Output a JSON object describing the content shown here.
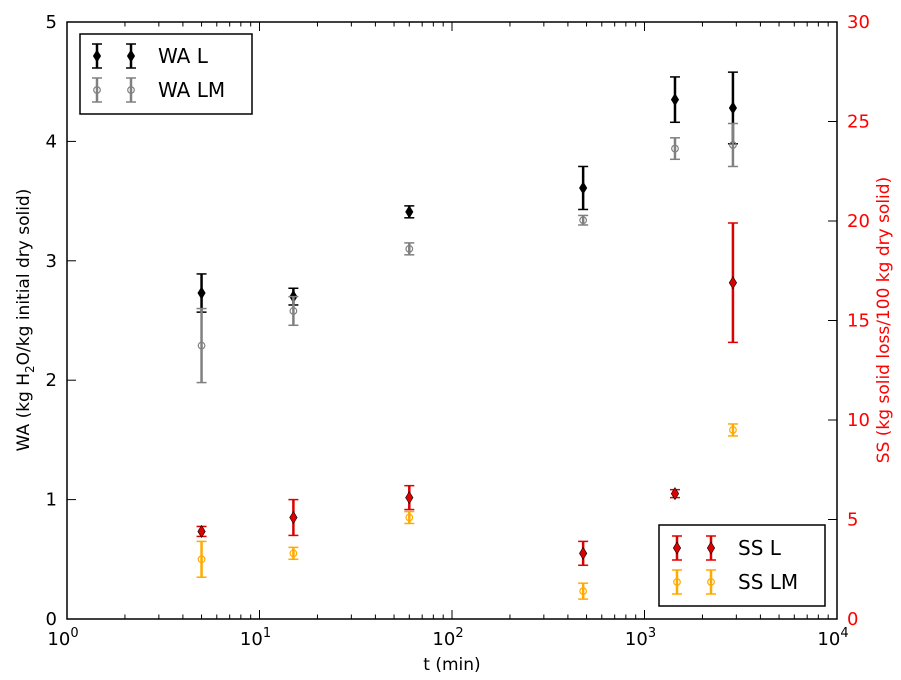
{
  "chart_data": {
    "type": "scatter",
    "x_scale": "log",
    "xlim": [
      1,
      10000
    ],
    "xlabel": "t (min)",
    "x_ticks": [
      {
        "value": 1,
        "base": "10",
        "exp": "0"
      },
      {
        "value": 10,
        "base": "10",
        "exp": "1"
      },
      {
        "value": 100,
        "base": "10",
        "exp": "2"
      },
      {
        "value": 1000,
        "base": "10",
        "exp": "3"
      },
      {
        "value": 10000,
        "base": "10",
        "exp": "4"
      }
    ],
    "left_axis": {
      "label_parts": [
        "WA (kg H",
        "2",
        "O/kg initial dry solid)"
      ],
      "ylim": [
        0,
        5
      ],
      "ticks": [
        "0",
        "1",
        "2",
        "3",
        "4",
        "5"
      ],
      "color": "#000000"
    },
    "right_axis": {
      "label": "SS (kg solid loss/100 kg dry solid)",
      "ylim": [
        0,
        30
      ],
      "ticks": [
        "0",
        "5",
        "10",
        "15",
        "20",
        "25",
        "30"
      ],
      "color": "#ff0000"
    },
    "grid": false,
    "legends": [
      {
        "placement": "top-left",
        "entries": [
          "WA L",
          "WA LM"
        ]
      },
      {
        "placement": "bottom-right",
        "entries": [
          "SS L",
          "SS LM"
        ]
      }
    ],
    "series": [
      {
        "name": "WA L",
        "axis": "left",
        "marker": "diamond-filled",
        "color": "#000000",
        "points": [
          {
            "x": 5,
            "y": 2.73,
            "err": 0.16
          },
          {
            "x": 15,
            "y": 2.7,
            "err": 0.07
          },
          {
            "x": 60,
            "y": 3.41,
            "err": 0.05
          },
          {
            "x": 480,
            "y": 3.61,
            "err": 0.18
          },
          {
            "x": 1440,
            "y": 4.35,
            "err": 0.19
          },
          {
            "x": 2880,
            "y": 4.28,
            "err": 0.3
          }
        ]
      },
      {
        "name": "WA LM",
        "axis": "left",
        "marker": "circle-open",
        "color": "#808080",
        "points": [
          {
            "x": 5,
            "y": 2.29,
            "err": 0.31
          },
          {
            "x": 15,
            "y": 2.58,
            "err": 0.12
          },
          {
            "x": 60,
            "y": 3.1,
            "err": 0.05
          },
          {
            "x": 480,
            "y": 3.34,
            "err": 0.04
          },
          {
            "x": 1440,
            "y": 3.94,
            "err": 0.09
          },
          {
            "x": 2880,
            "y": 3.97,
            "err": 0.18
          }
        ]
      },
      {
        "name": "SS L",
        "axis": "right",
        "marker": "diamond-filled",
        "color": "#dd0000",
        "points": [
          {
            "x": 5,
            "y": 4.4,
            "err": 0.25
          },
          {
            "x": 15,
            "y": 5.1,
            "err": 0.9
          },
          {
            "x": 60,
            "y": 6.1,
            "err": 0.6
          },
          {
            "x": 480,
            "y": 3.3,
            "err": 0.6
          },
          {
            "x": 1440,
            "y": 6.3,
            "err": 0.2
          },
          {
            "x": 2880,
            "y": 16.9,
            "err": 3.0
          }
        ]
      },
      {
        "name": "SS LM",
        "axis": "right",
        "marker": "circle-open",
        "color": "#ffaa00",
        "points": [
          {
            "x": 5,
            "y": 3.0,
            "err": 0.9
          },
          {
            "x": 15,
            "y": 3.3,
            "err": 0.3
          },
          {
            "x": 60,
            "y": 5.1,
            "err": 0.3
          },
          {
            "x": 480,
            "y": 1.4,
            "err": 0.4
          },
          {
            "x": 2880,
            "y": 9.5,
            "err": 0.3
          }
        ]
      }
    ]
  }
}
